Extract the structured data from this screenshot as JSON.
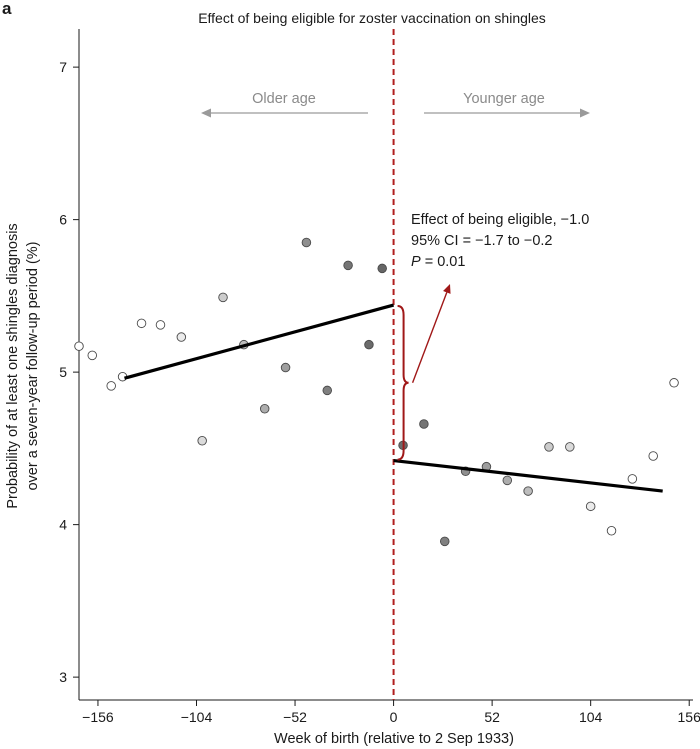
{
  "chart_data": {
    "type": "scatter",
    "panel_label": "a",
    "title": "Effect of being eligible for zoster vaccination on shingles",
    "xlabel": "Week of birth (relative to 2 Sep 1933)",
    "ylabel": "Probability of at least one shingles diagnosis over a seven-year follow-up period (%)",
    "ylabel_lines": [
      "Probability of at least one shingles diagnosis",
      "over a seven-year follow-up period (%)"
    ],
    "xlim": [
      -166,
      158
    ],
    "ylim": [
      2.85,
      7.25
    ],
    "xticks": [
      -156,
      -104,
      -52,
      0,
      52,
      104,
      156
    ],
    "xtick_labels": [
      "−156",
      "−104",
      "−52",
      "0",
      "52",
      "104",
      "156"
    ],
    "yticks": [
      3,
      4,
      5,
      6,
      7
    ],
    "ytick_labels": [
      "3",
      "4",
      "5",
      "6",
      "7"
    ],
    "grid": false,
    "legend": "none",
    "cutoff_x": 0,
    "direction_labels": {
      "left": "Older age",
      "right": "Younger age"
    },
    "annotation": {
      "line1": "Effect of being eligible, −1.0",
      "line2": "95% CI = −1.7 to −0.2",
      "line3_italic": "P",
      "line3_rest": " = 0.01"
    },
    "points": [
      {
        "x": -166,
        "y": 5.17,
        "shade": 1.0
      },
      {
        "x": -159,
        "y": 5.11,
        "shade": 1.0
      },
      {
        "x": -149,
        "y": 4.91,
        "shade": 1.0
      },
      {
        "x": -143,
        "y": 4.97,
        "shade": 1.0
      },
      {
        "x": -133,
        "y": 5.32,
        "shade": 1.0
      },
      {
        "x": -123,
        "y": 5.31,
        "shade": 1.0
      },
      {
        "x": -112,
        "y": 5.23,
        "shade": 0.92
      },
      {
        "x": -101,
        "y": 4.55,
        "shade": 0.86
      },
      {
        "x": -90,
        "y": 5.49,
        "shade": 0.8
      },
      {
        "x": -79,
        "y": 5.18,
        "shade": 0.74
      },
      {
        "x": -68,
        "y": 4.76,
        "shade": 0.68
      },
      {
        "x": -57,
        "y": 5.03,
        "shade": 0.62
      },
      {
        "x": -46,
        "y": 5.85,
        "shade": 0.56
      },
      {
        "x": -35,
        "y": 4.88,
        "shade": 0.5
      },
      {
        "x": -24,
        "y": 5.7,
        "shade": 0.46
      },
      {
        "x": -13,
        "y": 5.18,
        "shade": 0.42
      },
      {
        "x": -6,
        "y": 5.68,
        "shade": 0.4
      },
      {
        "x": 5,
        "y": 4.52,
        "shade": 0.42
      },
      {
        "x": 16,
        "y": 4.66,
        "shade": 0.46
      },
      {
        "x": 27,
        "y": 3.89,
        "shade": 0.5
      },
      {
        "x": 38,
        "y": 4.35,
        "shade": 0.56
      },
      {
        "x": 49,
        "y": 4.38,
        "shade": 0.62
      },
      {
        "x": 60,
        "y": 4.29,
        "shade": 0.68
      },
      {
        "x": 71,
        "y": 4.22,
        "shade": 0.74
      },
      {
        "x": 82,
        "y": 4.51,
        "shade": 0.8
      },
      {
        "x": 93,
        "y": 4.51,
        "shade": 0.86
      },
      {
        "x": 104,
        "y": 4.12,
        "shade": 0.92
      },
      {
        "x": 115,
        "y": 3.96,
        "shade": 1.0
      },
      {
        "x": 126,
        "y": 4.3,
        "shade": 1.0
      },
      {
        "x": 137,
        "y": 4.45,
        "shade": 1.0
      },
      {
        "x": 148,
        "y": 4.93,
        "shade": 1.0
      }
    ],
    "fit_lines": [
      {
        "x": [
          -142,
          0
        ],
        "y": [
          4.96,
          5.44
        ]
      },
      {
        "x": [
          0,
          142
        ],
        "y": [
          4.42,
          4.22
        ]
      }
    ],
    "colors": {
      "axis": "#1a1a1a",
      "fit_line": "#000000",
      "cutoff": "#b01e1e",
      "brace": "#a01818",
      "arrow": "#a01818",
      "direction_arrow": "#9a9a9a",
      "point_edge": "#4a4a4a"
    }
  }
}
